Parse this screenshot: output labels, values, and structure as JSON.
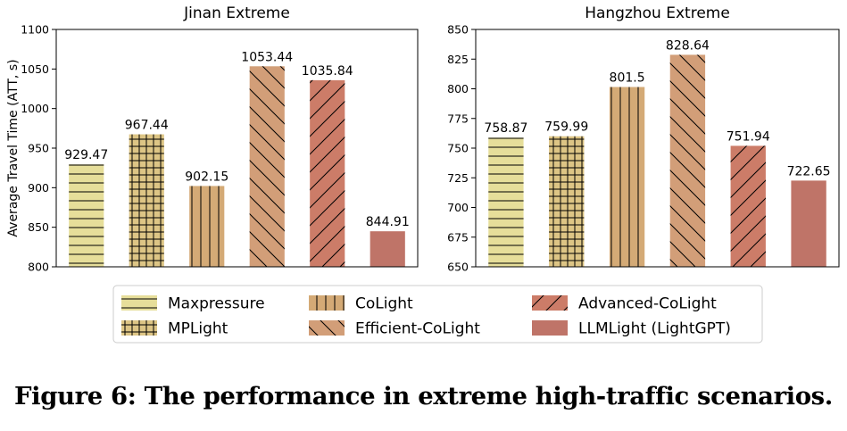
{
  "chart_data": [
    {
      "type": "bar",
      "title": "Jinan Extreme",
      "ylabel": "Average Travel Time (ATT, s)",
      "xlabel": "",
      "ylim": [
        800,
        1100
      ],
      "yticks": [
        800,
        850,
        900,
        950,
        1000,
        1050,
        1100
      ],
      "categories": [
        "Maxpressure",
        "MPLight",
        "CoLight",
        "Efficient-CoLight",
        "Advanced-CoLight",
        "LLMLight (LightGPT)"
      ],
      "values": [
        929.47,
        967.44,
        902.15,
        1053.44,
        1035.84,
        844.91
      ],
      "value_labels": [
        "929.47",
        "967.44",
        "902.15",
        "1053.44",
        "1035.84",
        "844.91"
      ]
    },
    {
      "type": "bar",
      "title": "Hangzhou Extreme",
      "ylabel": "",
      "xlabel": "",
      "ylim": [
        650,
        850
      ],
      "yticks": [
        650,
        675,
        700,
        725,
        750,
        775,
        800,
        825,
        850
      ],
      "categories": [
        "Maxpressure",
        "MPLight",
        "CoLight",
        "Efficient-CoLight",
        "Advanced-CoLight",
        "LLMLight (LightGPT)"
      ],
      "values": [
        758.87,
        759.99,
        801.5,
        828.64,
        751.94,
        722.65
      ],
      "value_labels": [
        "758.87",
        "759.99",
        "801.5",
        "828.64",
        "751.94",
        "722.65"
      ]
    }
  ],
  "legend": {
    "placement": "bottom-center",
    "items": [
      {
        "label": "Maxpressure",
        "color": "#e6de9a",
        "hatch": "horizontal"
      },
      {
        "label": "MPLight",
        "color": "#ddc585",
        "hatch": "grid"
      },
      {
        "label": "CoLight",
        "color": "#d4aa76",
        "hatch": "vertical"
      },
      {
        "label": "Efficient-CoLight",
        "color": "#d29e78",
        "hatch": "backslash"
      },
      {
        "label": "Advanced-CoLight",
        "color": "#cc7c68",
        "hatch": "slash"
      },
      {
        "label": "LLMLight (LightGPT)",
        "color": "#bf7468",
        "hatch": "none"
      }
    ]
  },
  "caption": "Figure 6: The performance in extreme high-traffic scenarios."
}
